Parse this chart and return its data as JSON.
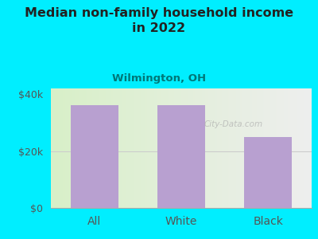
{
  "title": "Median non-family household income\nin 2022",
  "subtitle": "Wilmington, OH",
  "categories": [
    "All",
    "White",
    "Black"
  ],
  "values": [
    36000,
    36000,
    25000
  ],
  "bar_color": "#b8a0d0",
  "background_outer": "#00eeff",
  "title_color": "#222222",
  "subtitle_color": "#007777",
  "tick_color": "#555555",
  "ylim": [
    0,
    42000
  ],
  "yticks": [
    0,
    20000,
    40000
  ],
  "ytick_labels": [
    "$0",
    "$20k",
    "$40k"
  ],
  "watermark": "City-Data.com",
  "figsize": [
    4.0,
    3.0
  ],
  "dpi": 100
}
